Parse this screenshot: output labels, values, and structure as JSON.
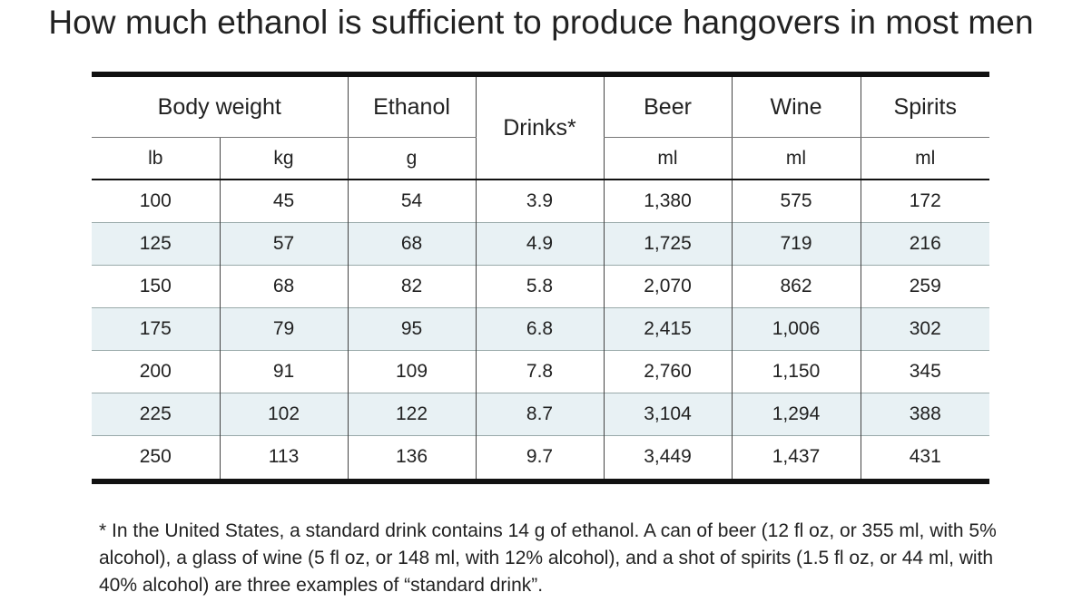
{
  "title": "How much ethanol is sufficient to produce hangovers in most men",
  "table": {
    "groups": {
      "body_weight": "Body weight",
      "ethanol": "Ethanol",
      "drinks": "Drinks*",
      "beer": "Beer",
      "wine": "Wine",
      "spirits": "Spirits"
    },
    "units": {
      "lb": "lb",
      "kg": "kg",
      "ethanol": "g",
      "beer": "ml",
      "wine": "ml",
      "spirits": "ml"
    },
    "rows": [
      [
        "100",
        "45",
        "54",
        "3.9",
        "1,380",
        "575",
        "172"
      ],
      [
        "125",
        "57",
        "68",
        "4.9",
        "1,725",
        "719",
        "216"
      ],
      [
        "150",
        "68",
        "82",
        "5.8",
        "2,070",
        "862",
        "259"
      ],
      [
        "175",
        "79",
        "95",
        "6.8",
        "2,415",
        "1,006",
        "302"
      ],
      [
        "200",
        "91",
        "109",
        "7.8",
        "2,760",
        "1,150",
        "345"
      ],
      [
        "225",
        "102",
        "122",
        "8.7",
        "3,104",
        "1,294",
        "388"
      ],
      [
        "250",
        "113",
        "136",
        "9.7",
        "3,449",
        "1,437",
        "431"
      ]
    ]
  },
  "footnote": "* In the United States, a standard drink contains 14 g of ethanol. A can of beer (12 fl oz, or 355 ml, with 5% alcohol), a glass of wine (5 fl oz, or 148 ml, with 12% alcohol), and a shot of spirits (1.5 fl oz, or 44 ml, with 40% alcohol) are three examples of “standard drink”.",
  "colors": {
    "stripe": "#e8f1f4",
    "rule": "#111111"
  }
}
